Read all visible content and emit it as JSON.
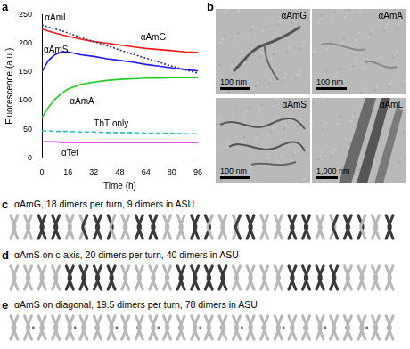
{
  "chart_data": {
    "type": "line",
    "x": [
      0,
      4,
      8,
      12,
      16,
      24,
      32,
      40,
      48,
      56,
      64,
      72,
      80,
      88,
      96
    ],
    "xlim": [
      0,
      96
    ],
    "xticks": [
      0,
      16,
      32,
      48,
      64,
      80,
      96
    ],
    "ylim": [
      0,
      250
    ],
    "yticks": [
      0,
      50,
      100,
      150,
      200,
      250
    ],
    "x_label": "Time (h)",
    "y_label": "Fluorescence (a.u.)",
    "grid": false,
    "series": [
      {
        "name": "αAmL",
        "color": "#3b2c78",
        "line_style": "dotted",
        "values": [
          232,
          228,
          225,
          222,
          218,
          210,
          203,
          196,
          188,
          181,
          174,
          167,
          160,
          154,
          148
        ]
      },
      {
        "name": "αAmG",
        "color": "#ff1a1a",
        "line_style": "solid",
        "values": [
          225,
          221,
          218,
          215,
          212,
          207,
          203,
          200,
          197,
          194,
          191,
          189,
          187,
          185,
          184
        ]
      },
      {
        "name": "αAmS",
        "color": "#1a1aff",
        "line_style": "solid",
        "values": [
          150,
          170,
          180,
          185,
          185,
          180,
          177,
          173,
          170,
          167,
          163,
          160,
          157,
          154,
          152
        ]
      },
      {
        "name": "αAmA",
        "color": "#22cc22",
        "line_style": "solid",
        "values": [
          70,
          88,
          102,
          112,
          120,
          128,
          132,
          135,
          137,
          138,
          139,
          139,
          140,
          140,
          140
        ]
      },
      {
        "name": "ThT only",
        "color": "#1cc8c8",
        "line_style": "dashed",
        "values": [
          47,
          47,
          46,
          46,
          46,
          45,
          45,
          44,
          44,
          44,
          43,
          43,
          43,
          42,
          42
        ]
      },
      {
        "name": "αTet",
        "color": "#e020e0",
        "line_style": "solid",
        "values": [
          28,
          28,
          28,
          27,
          27,
          27,
          27,
          27,
          27,
          27,
          27,
          27,
          27,
          27,
          27
        ]
      }
    ]
  },
  "panels": [
    {
      "label": "a"
    },
    {
      "label": "b",
      "micrographs": [
        {
          "name": "αAmG",
          "scale_bar": "100 nm"
        },
        {
          "name": "αAmA",
          "scale_bar": "100 nm"
        },
        {
          "name": "αAmS",
          "scale_bar": "100 nm"
        },
        {
          "name": "αAmL",
          "scale_bar": "1,000 nm"
        }
      ]
    },
    {
      "label": "c",
      "caption": "αAmG, 18 dimers per turn, 9 dimers in ASU"
    },
    {
      "label": "d",
      "caption": "αAmS on c-axis, 20 dimers per turn, 40 dimers in ASU"
    },
    {
      "label": "e",
      "caption": "αAmS on diagonal, 19.5 dimers per turn, 78 dimers in ASU"
    }
  ]
}
